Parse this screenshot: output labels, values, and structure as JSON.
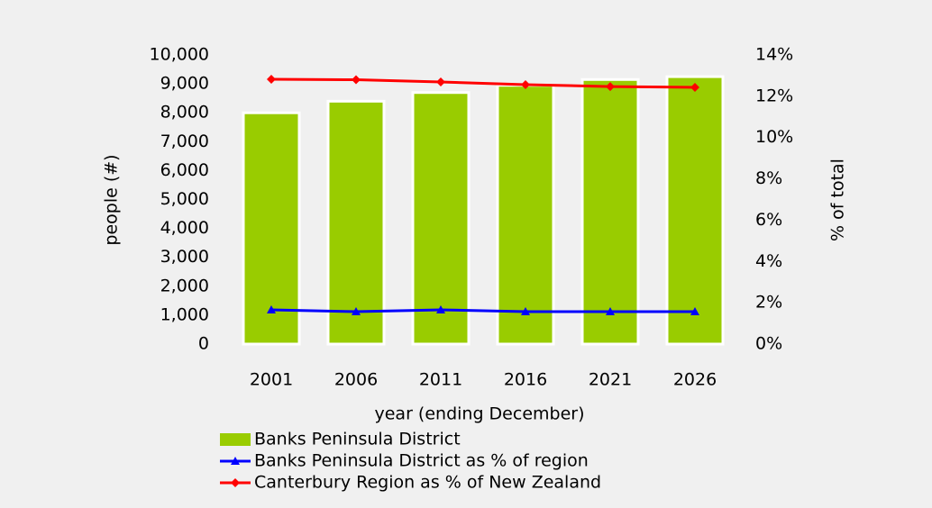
{
  "chart_data": {
    "type": "bar",
    "categories": [
      "2001",
      "2006",
      "2011",
      "2016",
      "2021",
      "2026"
    ],
    "series": [
      {
        "name": "Banks Peninsula District",
        "type": "bar",
        "axis": "y",
        "color": "#99cc00",
        "values": [
          8000,
          8400,
          8700,
          8950,
          9150,
          9250
        ]
      },
      {
        "name": "Banks Peninsula District as % of region",
        "type": "line",
        "axis": "y2",
        "color": "#0000ff",
        "marker": "triangle",
        "values": [
          1.66,
          1.57,
          1.66,
          1.57,
          1.57,
          1.57
        ]
      },
      {
        "name": "Canterbury Region  as % of New Zealand",
        "type": "line",
        "axis": "y2",
        "color": "#ff0000",
        "marker": "diamond",
        "values": [
          12.82,
          12.8,
          12.69,
          12.56,
          12.47,
          12.43
        ]
      }
    ],
    "x_label": "year (ending December)",
    "y_label": "people (#)",
    "y2_label": "% of total",
    "ylim": [
      0,
      10000
    ],
    "yticks": [
      0,
      {
        "value": 1000,
        "label": "1,000"
      },
      {
        "value": 2000,
        "label": "2,000"
      },
      {
        "value": 3000,
        "label": "3,000"
      },
      {
        "value": 4000,
        "label": "4,000"
      },
      {
        "value": 5000,
        "label": "5,000"
      },
      {
        "value": 6000,
        "label": "6,000"
      },
      {
        "value": 7000,
        "label": "7,000"
      },
      {
        "value": 8000,
        "label": "8,000"
      },
      {
        "value": 9000,
        "label": "9,000"
      },
      {
        "value": 10000,
        "label": "10,000"
      }
    ],
    "y2lim": [
      0,
      14
    ],
    "y2ticks": [
      {
        "value": 0,
        "label": "0%"
      },
      {
        "value": 2,
        "label": "2%"
      },
      {
        "value": 4,
        "label": "4%"
      },
      {
        "value": 6,
        "label": "6%"
      },
      {
        "value": 8,
        "label": "8%"
      },
      {
        "value": 10,
        "label": "10%"
      },
      {
        "value": 12,
        "label": "12%"
      },
      {
        "value": 14,
        "label": "14%"
      }
    ],
    "legend": "bottom"
  }
}
